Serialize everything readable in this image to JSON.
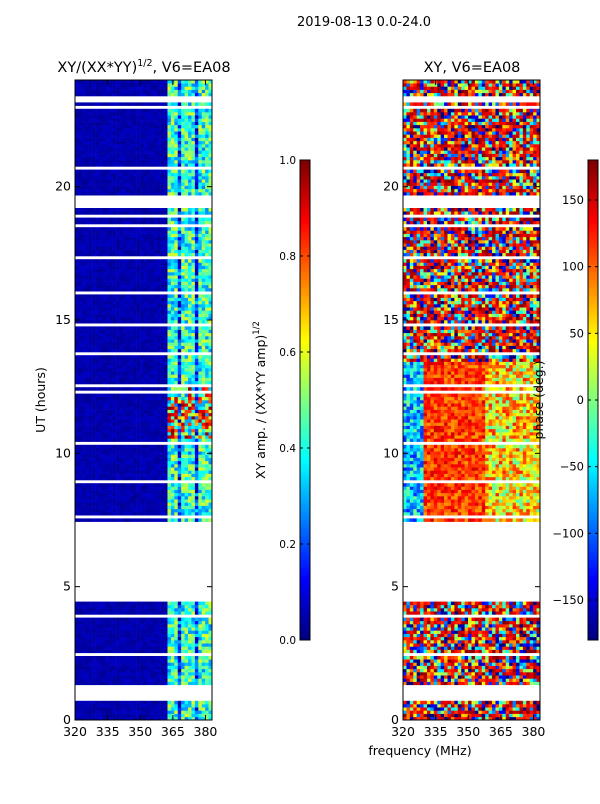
{
  "figure_title": "2019-08-13 0.0-24.0",
  "shared_xlabel": "frequency (MHz)",
  "chart_data": [
    {
      "type": "heatmap",
      "title_prefix": "XY/(XX*YY)",
      "title_exp": "1/2",
      "title_suffix": ", V6=EA08",
      "xlabel": "frequency (MHz)",
      "ylabel": "UT (hours)",
      "xlim": [
        320,
        383
      ],
      "ylim": [
        0,
        24
      ],
      "xticks": [
        320,
        335,
        350,
        365,
        380
      ],
      "yticks": [
        0,
        5,
        10,
        15,
        20
      ],
      "colorbar": {
        "label_main": "XY amp. / (XX*YY amp)",
        "label_exp": "1/2",
        "range": [
          0.0,
          1.0
        ],
        "ticks": [
          "0.0",
          "0.2",
          "0.4",
          "0.6",
          "0.8",
          "1.0"
        ]
      },
      "data_gaps_hours": [
        [
          0.0,
          0.05
        ],
        [
          0.75,
          1.35
        ],
        [
          4.4,
          7.3
        ]
      ],
      "bright_band_mhz": [
        363,
        383
      ]
    },
    {
      "type": "heatmap",
      "title": "XY, V6=EA08",
      "xlabel": "frequency (MHz)",
      "ylabel": "",
      "xlim": [
        320,
        383
      ],
      "ylim": [
        0,
        24
      ],
      "xticks": [
        320,
        335,
        350,
        365,
        380
      ],
      "yticks": [
        0,
        5,
        10,
        15,
        20
      ],
      "colorbar": {
        "label": "phase (deg.)",
        "range": [
          -180,
          180
        ],
        "ticks": [
          "−150",
          "−100",
          "−50",
          "0",
          "50",
          "100",
          "150"
        ]
      },
      "data_gaps_hours": [
        [
          0.0,
          0.05
        ],
        [
          0.75,
          1.35
        ],
        [
          4.4,
          7.3
        ]
      ]
    }
  ]
}
